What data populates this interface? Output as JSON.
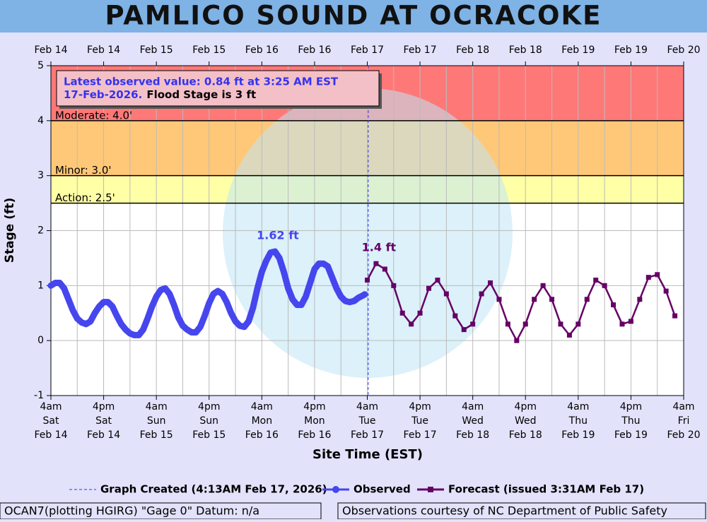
{
  "chart_data": {
    "type": "line",
    "title": "PAMLICO SOUND AT OCRACOKE",
    "y_label": "Stage (ft)",
    "x_label": "Site Time (EST)",
    "ylim": [
      -1,
      5
    ],
    "yticks": [
      -1,
      0,
      1,
      2,
      3,
      4,
      5
    ],
    "xlim": [
      "2026-02-14T04:00",
      "2026-02-20T04:00"
    ],
    "xticks": [
      {
        "value": "2026-02-14T04:00",
        "label": [
          "4am",
          "Sat",
          "Feb 14"
        ]
      },
      {
        "value": "2026-02-14T16:00",
        "label": [
          "4pm",
          "Sat",
          "Feb 14"
        ]
      },
      {
        "value": "2026-02-15T04:00",
        "label": [
          "4am",
          "Sun",
          "Feb 15"
        ]
      },
      {
        "value": "2026-02-15T16:00",
        "label": [
          "4pm",
          "Sun",
          "Feb 15"
        ]
      },
      {
        "value": "2026-02-16T04:00",
        "label": [
          "4am",
          "Mon",
          "Feb 16"
        ]
      },
      {
        "value": "2026-02-16T16:00",
        "label": [
          "4pm",
          "Mon",
          "Feb 16"
        ]
      },
      {
        "value": "2026-02-17T04:00",
        "label": [
          "4am",
          "Tue",
          "Feb 17"
        ]
      },
      {
        "value": "2026-02-17T16:00",
        "label": [
          "4pm",
          "Tue",
          "Feb 17"
        ]
      },
      {
        "value": "2026-02-18T04:00",
        "label": [
          "4am",
          "Wed",
          "Feb 18"
        ]
      },
      {
        "value": "2026-02-18T16:00",
        "label": [
          "4pm",
          "Wed",
          "Feb 18"
        ]
      },
      {
        "value": "2026-02-19T04:00",
        "label": [
          "4am",
          "Thu",
          "Feb 19"
        ]
      },
      {
        "value": "2026-02-19T16:00",
        "label": [
          "4pm",
          "Thu",
          "Feb 19"
        ]
      },
      {
        "value": "2026-02-20T04:00",
        "label": [
          "4am",
          "Fri",
          "Feb 20"
        ]
      }
    ],
    "x2ticks": [
      {
        "value": "2026-02-14T04:00",
        "label": "Feb 14"
      },
      {
        "value": "2026-02-14T16:00",
        "label": "Feb 14"
      },
      {
        "value": "2026-02-15T04:00",
        "label": "Feb 15"
      },
      {
        "value": "2026-02-15T16:00",
        "label": "Feb 15"
      },
      {
        "value": "2026-02-16T04:00",
        "label": "Feb 16"
      },
      {
        "value": "2026-02-16T16:00",
        "label": "Feb 16"
      },
      {
        "value": "2026-02-17T04:00",
        "label": "Feb 17"
      },
      {
        "value": "2026-02-17T16:00",
        "label": "Feb 17"
      },
      {
        "value": "2026-02-18T04:00",
        "label": "Feb 18"
      },
      {
        "value": "2026-02-18T16:00",
        "label": "Feb 18"
      },
      {
        "value": "2026-02-19T04:00",
        "label": "Feb 19"
      },
      {
        "value": "2026-02-19T16:00",
        "label": "Feb 19"
      },
      {
        "value": "2026-02-20T04:00",
        "label": "Feb 20"
      }
    ],
    "grid": true,
    "stages": [
      {
        "label": "Action: 2.5'",
        "value": 2.5,
        "color": "#ffffa6"
      },
      {
        "label": "Minor: 3.0'",
        "value": 3.0,
        "color": "#ffc878"
      },
      {
        "label": "Moderate: 4.0'",
        "value": 4.0,
        "color": "#ff7878"
      }
    ],
    "info": {
      "line1": "Latest observed value: 0.84 ft at 3:25 AM EST",
      "line2": "17-Feb-2026.",
      "flood": "Flood Stage is 3 ft"
    },
    "created": {
      "label": "Graph Created (4:13AM Feb 17, 2026)",
      "time": "2026-02-17T04:13",
      "color": "#3333dd"
    },
    "series": [
      {
        "name": "Observed",
        "color": "#4646ee",
        "marker": "circle",
        "x": [
          "2026-02-14T04:00",
          "2026-02-14T05:00",
          "2026-02-14T06:00",
          "2026-02-14T07:00",
          "2026-02-14T08:00",
          "2026-02-14T09:00",
          "2026-02-14T10:00",
          "2026-02-14T11:00",
          "2026-02-14T12:00",
          "2026-02-14T13:00",
          "2026-02-14T14:00",
          "2026-02-14T15:00",
          "2026-02-14T16:00",
          "2026-02-14T17:00",
          "2026-02-14T18:00",
          "2026-02-14T19:00",
          "2026-02-14T20:00",
          "2026-02-14T21:00",
          "2026-02-14T22:00",
          "2026-02-14T23:00",
          "2026-02-15T00:00",
          "2026-02-15T01:00",
          "2026-02-15T02:00",
          "2026-02-15T03:00",
          "2026-02-15T04:00",
          "2026-02-15T05:00",
          "2026-02-15T06:00",
          "2026-02-15T07:00",
          "2026-02-15T08:00",
          "2026-02-15T09:00",
          "2026-02-15T10:00",
          "2026-02-15T11:00",
          "2026-02-15T12:00",
          "2026-02-15T13:00",
          "2026-02-15T14:00",
          "2026-02-15T15:00",
          "2026-02-15T16:00",
          "2026-02-15T17:00",
          "2026-02-15T18:00",
          "2026-02-15T19:00",
          "2026-02-15T20:00",
          "2026-02-15T21:00",
          "2026-02-15T22:00",
          "2026-02-15T23:00",
          "2026-02-16T00:00",
          "2026-02-16T01:00",
          "2026-02-16T02:00",
          "2026-02-16T03:00",
          "2026-02-16T04:00",
          "2026-02-16T05:00",
          "2026-02-16T06:00",
          "2026-02-16T07:00",
          "2026-02-16T08:00",
          "2026-02-16T09:00",
          "2026-02-16T10:00",
          "2026-02-16T11:00",
          "2026-02-16T12:00",
          "2026-02-16T13:00",
          "2026-02-16T14:00",
          "2026-02-16T15:00",
          "2026-02-16T16:00",
          "2026-02-16T17:00",
          "2026-02-16T18:00",
          "2026-02-16T19:00",
          "2026-02-16T20:00",
          "2026-02-16T21:00",
          "2026-02-16T22:00",
          "2026-02-16T23:00",
          "2026-02-17T00:00",
          "2026-02-17T01:00",
          "2026-02-17T02:00",
          "2026-02-17T03:00",
          "2026-02-17T03:25"
        ],
        "values": [
          1.0,
          1.05,
          1.05,
          0.95,
          0.75,
          0.55,
          0.4,
          0.33,
          0.3,
          0.35,
          0.5,
          0.62,
          0.7,
          0.7,
          0.62,
          0.45,
          0.3,
          0.2,
          0.13,
          0.1,
          0.1,
          0.2,
          0.4,
          0.62,
          0.8,
          0.92,
          0.95,
          0.85,
          0.65,
          0.42,
          0.27,
          0.2,
          0.15,
          0.15,
          0.25,
          0.45,
          0.68,
          0.85,
          0.9,
          0.85,
          0.7,
          0.5,
          0.35,
          0.27,
          0.25,
          0.35,
          0.6,
          0.95,
          1.25,
          1.45,
          1.6,
          1.62,
          1.5,
          1.25,
          0.95,
          0.75,
          0.65,
          0.65,
          0.8,
          1.05,
          1.3,
          1.4,
          1.4,
          1.35,
          1.15,
          0.95,
          0.8,
          0.72,
          0.7,
          0.72,
          0.78,
          0.82,
          0.84
        ]
      },
      {
        "name": "Forecast (issued 3:31AM Feb 17)",
        "color": "#660066",
        "marker": "square",
        "x": [
          "2026-02-17T04:00",
          "2026-02-17T06:00",
          "2026-02-17T08:00",
          "2026-02-17T10:00",
          "2026-02-17T12:00",
          "2026-02-17T14:00",
          "2026-02-17T16:00",
          "2026-02-17T18:00",
          "2026-02-17T20:00",
          "2026-02-17T22:00",
          "2026-02-18T00:00",
          "2026-02-18T02:00",
          "2026-02-18T04:00",
          "2026-02-18T06:00",
          "2026-02-18T08:00",
          "2026-02-18T10:00",
          "2026-02-18T12:00",
          "2026-02-18T14:00",
          "2026-02-18T16:00",
          "2026-02-18T18:00",
          "2026-02-18T20:00",
          "2026-02-18T22:00",
          "2026-02-19T00:00",
          "2026-02-19T02:00",
          "2026-02-19T04:00",
          "2026-02-19T06:00",
          "2026-02-19T08:00",
          "2026-02-19T10:00",
          "2026-02-19T12:00",
          "2026-02-19T14:00",
          "2026-02-19T16:00",
          "2026-02-19T18:00",
          "2026-02-19T20:00",
          "2026-02-19T22:00",
          "2026-02-20T00:00",
          "2026-02-20T02:00"
        ],
        "values": [
          1.1,
          1.4,
          1.3,
          1.0,
          0.5,
          0.3,
          0.5,
          0.95,
          1.1,
          0.85,
          0.45,
          0.2,
          0.3,
          0.85,
          1.05,
          0.75,
          0.3,
          0.0,
          0.3,
          0.75,
          1.0,
          0.75,
          0.3,
          0.1,
          0.3,
          0.75,
          1.1,
          1.0,
          0.65,
          0.3,
          0.35,
          0.75,
          1.15,
          1.2,
          0.9,
          0.45
        ]
      }
    ],
    "annotations": [
      {
        "text": "1.62 ft",
        "x": "2026-02-16T07:00",
        "y": 1.62,
        "color": "#4646ee"
      },
      {
        "text": "1.4 ft",
        "x": "2026-02-17T06:00",
        "y": 1.4,
        "color": "#660066"
      }
    ],
    "footer": [
      "OCAN7(plotting HGIRG) \"Gage 0\" Datum: n/a",
      "Observations courtesy of NC Department of Public Safety"
    ]
  }
}
